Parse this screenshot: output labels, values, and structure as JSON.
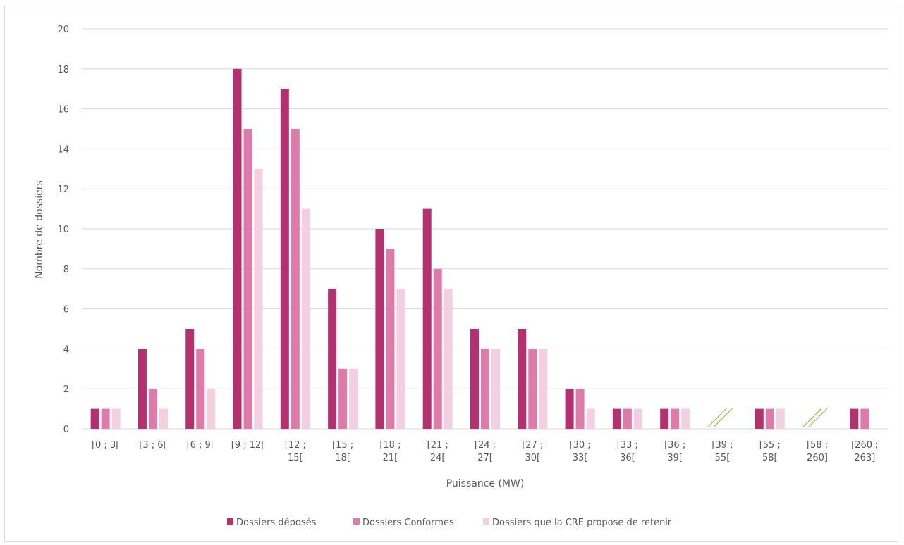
{
  "colors": {
    "series": [
      "#b5306e",
      "#df7aab",
      "#f4cfe1"
    ],
    "grid": "#d9d9d9",
    "break_mark": "#8cbf3f"
  },
  "chart_data": {
    "type": "bar",
    "title": "",
    "xlabel": "Puissance (MW)",
    "ylabel": "Nombre de dossiers",
    "ylim": [
      0,
      20
    ],
    "yticks": [
      0,
      2,
      4,
      6,
      8,
      10,
      12,
      14,
      16,
      18,
      20
    ],
    "grid": "horizontal",
    "legend_position": "bottom",
    "categories": [
      [
        "[0 ; 3["
      ],
      [
        "[3 ; 6["
      ],
      [
        "[6 ; 9["
      ],
      [
        "[9 ; 12["
      ],
      [
        "[12 ;",
        "15["
      ],
      [
        "[15 ;",
        "18["
      ],
      [
        "[18 ;",
        "21["
      ],
      [
        "[21 ;",
        "24["
      ],
      [
        "[24 ;",
        "27["
      ],
      [
        "[27 ;",
        "30["
      ],
      [
        "[30 ;",
        "33["
      ],
      [
        "[33 ;",
        "36["
      ],
      [
        "[36 ;",
        "39["
      ],
      [
        "[39 ;",
        "55["
      ],
      [
        "[55 ;",
        "58["
      ],
      [
        "[58 ;",
        "260]"
      ],
      [
        "[260 ;",
        "263]"
      ]
    ],
    "axis_breaks": [
      13,
      15
    ],
    "series": [
      {
        "name": "Dossiers déposés",
        "values": [
          1,
          4,
          5,
          18,
          17,
          7,
          10,
          11,
          5,
          5,
          2,
          1,
          1,
          0,
          1,
          0,
          1
        ]
      },
      {
        "name": "Dossiers Conformes",
        "values": [
          1,
          2,
          4,
          15,
          15,
          3,
          9,
          8,
          4,
          4,
          2,
          1,
          1,
          0,
          1,
          0,
          1
        ]
      },
      {
        "name": "Dossiers que la CRE propose de retenir",
        "values": [
          1,
          1,
          2,
          13,
          11,
          3,
          7,
          7,
          4,
          4,
          1,
          1,
          1,
          0,
          1,
          0,
          0
        ]
      }
    ]
  }
}
